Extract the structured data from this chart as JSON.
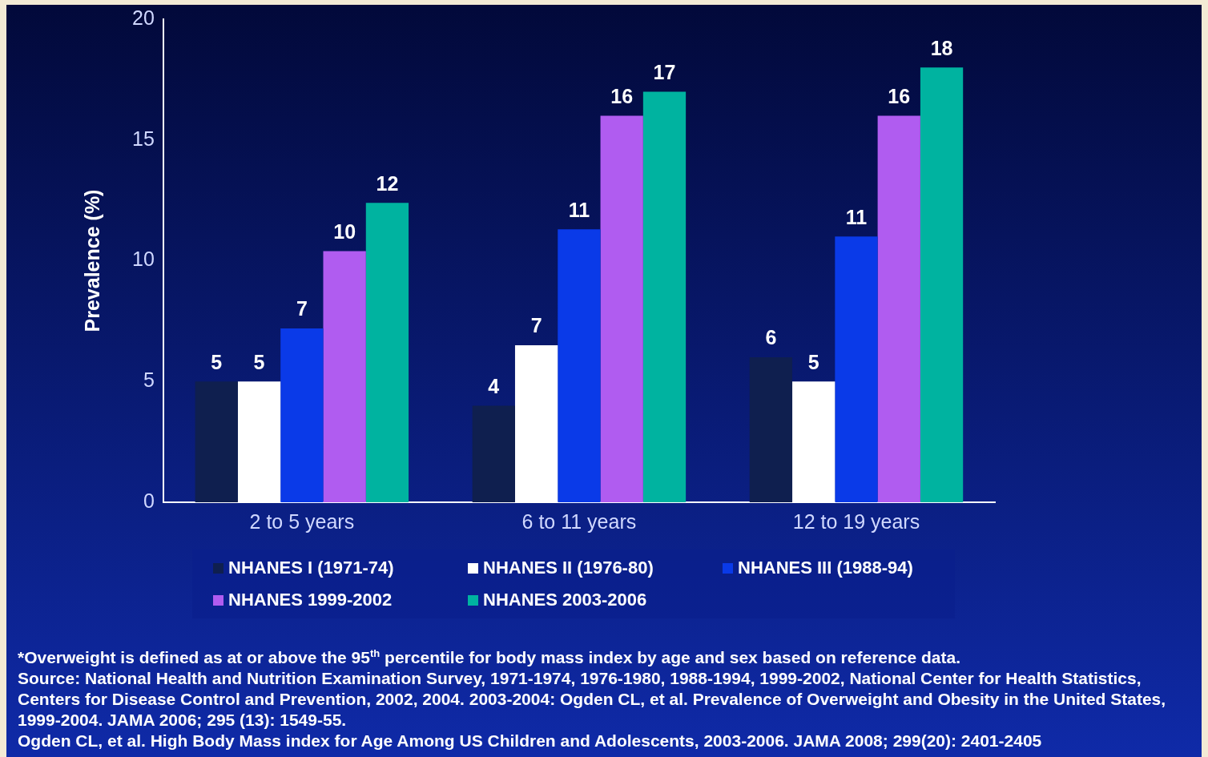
{
  "chart_data": {
    "type": "bar",
    "ylabel": "Prevalence (%)",
    "categories": [
      "2 to 5 years",
      "6 to 11 years",
      "12 to 19 years"
    ],
    "series": [
      {
        "name": "NHANES I (1971-74)",
        "color": "#0f1f4f",
        "values": [
          5,
          4,
          6
        ],
        "value_labels": [
          "5",
          "4",
          "6"
        ]
      },
      {
        "name": "NHANES II (1976-80)",
        "color": "#ffffff",
        "values": [
          5,
          6.5,
          5
        ],
        "value_labels": [
          "5",
          "7",
          "5"
        ]
      },
      {
        "name": "NHANES III (1988-94)",
        "color": "#0a3ae8",
        "values": [
          7.2,
          11.3,
          11
        ],
        "value_labels": [
          "7",
          "11",
          "11"
        ]
      },
      {
        "name": "NHANES 1999-2002",
        "color": "#b05cf0",
        "values": [
          10.4,
          16,
          16
        ],
        "value_labels": [
          "10",
          "16",
          "16"
        ]
      },
      {
        "name": "NHANES 2003-2006",
        "color": "#00b3a0",
        "values": [
          12.4,
          17,
          18
        ],
        "value_labels": [
          "12",
          "17",
          "18"
        ]
      }
    ],
    "ylim": [
      0,
      20
    ],
    "yticks": [
      0,
      5,
      10,
      15,
      20
    ],
    "grid": false,
    "legend": "bottom",
    "annotations": [
      "*Overweight is defined as at or above the 95$^{th}$ percentile for body mass index by age and sex based on reference data.",
      "Source: National Health and Nutrition Examination Survey, 1971-1974, 1976-1980, 1988-1994, 1999-2002, National Center for Health Statistics, Centers for Disease Control and Prevention, 2002, 2004. 2003-2004: Ogden CL, et al. Prevalence of Overweight and Obesity in the United States, 1999-2004. JAMA 2006; 295 (13): 1549-55.",
      "Ogden CL, et al. High Body Mass index for Age Among US Children and Adolescents, 2003-2006. JAMA 2008; 299(20): 2401-2405"
    ]
  }
}
